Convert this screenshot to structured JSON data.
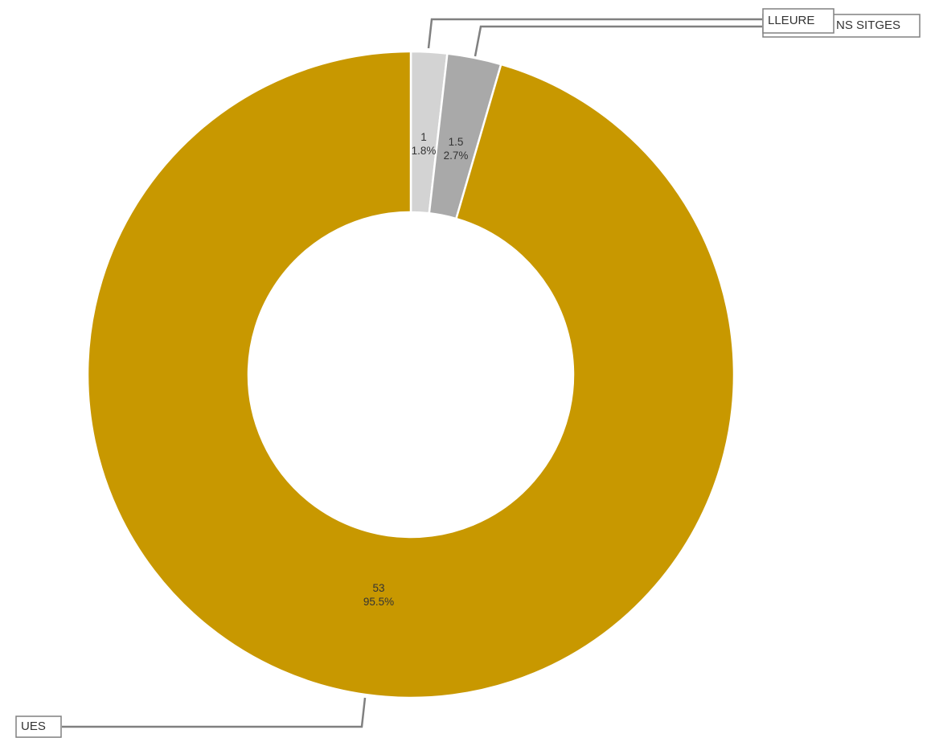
{
  "chart_data": {
    "type": "pie",
    "variant": "donut",
    "title": "",
    "legend": "none",
    "slices": [
      {
        "category": "LLEURE",
        "value": 1,
        "percent": "1.8%",
        "color": "#d3d3d3",
        "value_label": "1",
        "percent_label": "1.8%"
      },
      {
        "category": "NS SITGES",
        "value": 1.5,
        "percent": "2.7%",
        "color": "#a9a9a9",
        "value_label": "1.5",
        "percent_label": "2.7%"
      },
      {
        "category": "UES",
        "value": 53,
        "percent": "95.5%",
        "color": "#c89800",
        "value_label": "53",
        "percent_label": "95.5%"
      }
    ]
  },
  "colors": {
    "slice_border": "#ffffff",
    "leader_line": "#808080",
    "label_text": "#333333",
    "callout_border": "#808080",
    "background": "#ffffff"
  }
}
